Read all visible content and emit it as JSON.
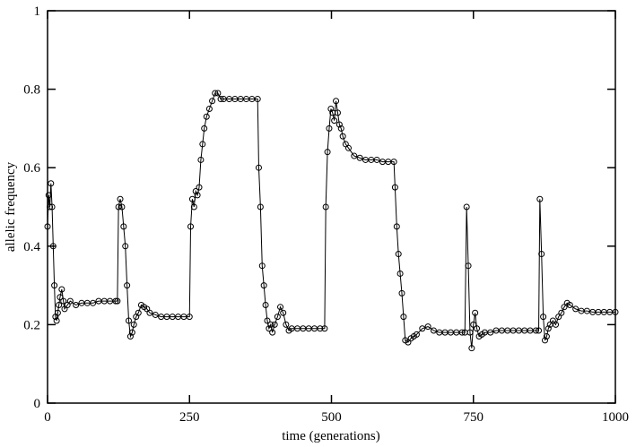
{
  "chart_data": {
    "type": "line",
    "xlabel": "time (generations)",
    "ylabel": "allelic frequency",
    "xlim": [
      0,
      1000
    ],
    "xticks": [
      0,
      250,
      500,
      750,
      1000
    ],
    "ylim": [
      0,
      1
    ],
    "yticks": [
      0,
      0.2,
      0.4,
      0.6,
      0.8,
      1
    ],
    "x": [
      0,
      2,
      4,
      6,
      8,
      10,
      12,
      14,
      16,
      18,
      20,
      22,
      25,
      28,
      30,
      35,
      40,
      50,
      60,
      70,
      80,
      90,
      100,
      110,
      120,
      123,
      125,
      128,
      131,
      134,
      137,
      140,
      143,
      146,
      149,
      152,
      156,
      160,
      165,
      170,
      175,
      180,
      190,
      200,
      210,
      220,
      230,
      240,
      250,
      252,
      255,
      258,
      261,
      264,
      267,
      270,
      273,
      276,
      280,
      285,
      290,
      295,
      300,
      305,
      310,
      320,
      330,
      340,
      350,
      360,
      370,
      372,
      375,
      378,
      381,
      384,
      387,
      390,
      393,
      396,
      400,
      405,
      410,
      415,
      420,
      425,
      430,
      440,
      450,
      460,
      470,
      480,
      488,
      490,
      493,
      496,
      499,
      502,
      505,
      508,
      511,
      514,
      517,
      520,
      525,
      530,
      540,
      550,
      560,
      570,
      580,
      590,
      600,
      610,
      612,
      615,
      618,
      621,
      624,
      627,
      630,
      635,
      640,
      645,
      650,
      660,
      670,
      680,
      690,
      700,
      710,
      720,
      730,
      735,
      738,
      741,
      744,
      747,
      750,
      753,
      756,
      760,
      765,
      770,
      780,
      790,
      800,
      810,
      820,
      830,
      840,
      850,
      860,
      865,
      867,
      870,
      873,
      876,
      879,
      882,
      885,
      890,
      895,
      900,
      905,
      910,
      915,
      920,
      930,
      940,
      950,
      960,
      970,
      980,
      990,
      1000
    ],
    "series": [
      {
        "name": "allelic frequency",
        "color": "#000000",
        "values": [
          0.45,
          0.53,
          0.5,
          0.56,
          0.5,
          0.4,
          0.3,
          0.22,
          0.21,
          0.23,
          0.25,
          0.27,
          0.29,
          0.26,
          0.24,
          0.25,
          0.26,
          0.25,
          0.255,
          0.255,
          0.255,
          0.26,
          0.26,
          0.26,
          0.26,
          0.26,
          0.5,
          0.52,
          0.5,
          0.45,
          0.4,
          0.3,
          0.21,
          0.17,
          0.18,
          0.2,
          0.22,
          0.23,
          0.25,
          0.245,
          0.24,
          0.23,
          0.225,
          0.22,
          0.22,
          0.22,
          0.22,
          0.22,
          0.22,
          0.45,
          0.52,
          0.5,
          0.54,
          0.53,
          0.55,
          0.62,
          0.66,
          0.7,
          0.73,
          0.75,
          0.77,
          0.79,
          0.79,
          0.775,
          0.775,
          0.775,
          0.775,
          0.775,
          0.775,
          0.775,
          0.775,
          0.6,
          0.5,
          0.35,
          0.3,
          0.25,
          0.21,
          0.19,
          0.2,
          0.18,
          0.2,
          0.22,
          0.245,
          0.23,
          0.2,
          0.185,
          0.19,
          0.19,
          0.19,
          0.19,
          0.19,
          0.19,
          0.19,
          0.5,
          0.64,
          0.7,
          0.75,
          0.74,
          0.72,
          0.77,
          0.74,
          0.71,
          0.7,
          0.68,
          0.66,
          0.65,
          0.63,
          0.625,
          0.62,
          0.62,
          0.62,
          0.615,
          0.615,
          0.615,
          0.55,
          0.45,
          0.38,
          0.33,
          0.28,
          0.22,
          0.16,
          0.155,
          0.165,
          0.17,
          0.175,
          0.19,
          0.195,
          0.185,
          0.18,
          0.18,
          0.18,
          0.18,
          0.18,
          0.18,
          0.5,
          0.35,
          0.18,
          0.14,
          0.2,
          0.23,
          0.19,
          0.17,
          0.175,
          0.18,
          0.18,
          0.185,
          0.185,
          0.185,
          0.185,
          0.185,
          0.185,
          0.185,
          0.185,
          0.185,
          0.52,
          0.38,
          0.22,
          0.16,
          0.17,
          0.19,
          0.2,
          0.21,
          0.2,
          0.22,
          0.23,
          0.245,
          0.255,
          0.25,
          0.24,
          0.235,
          0.235,
          0.232,
          0.232,
          0.232,
          0.232,
          0.232
        ]
      }
    ]
  }
}
